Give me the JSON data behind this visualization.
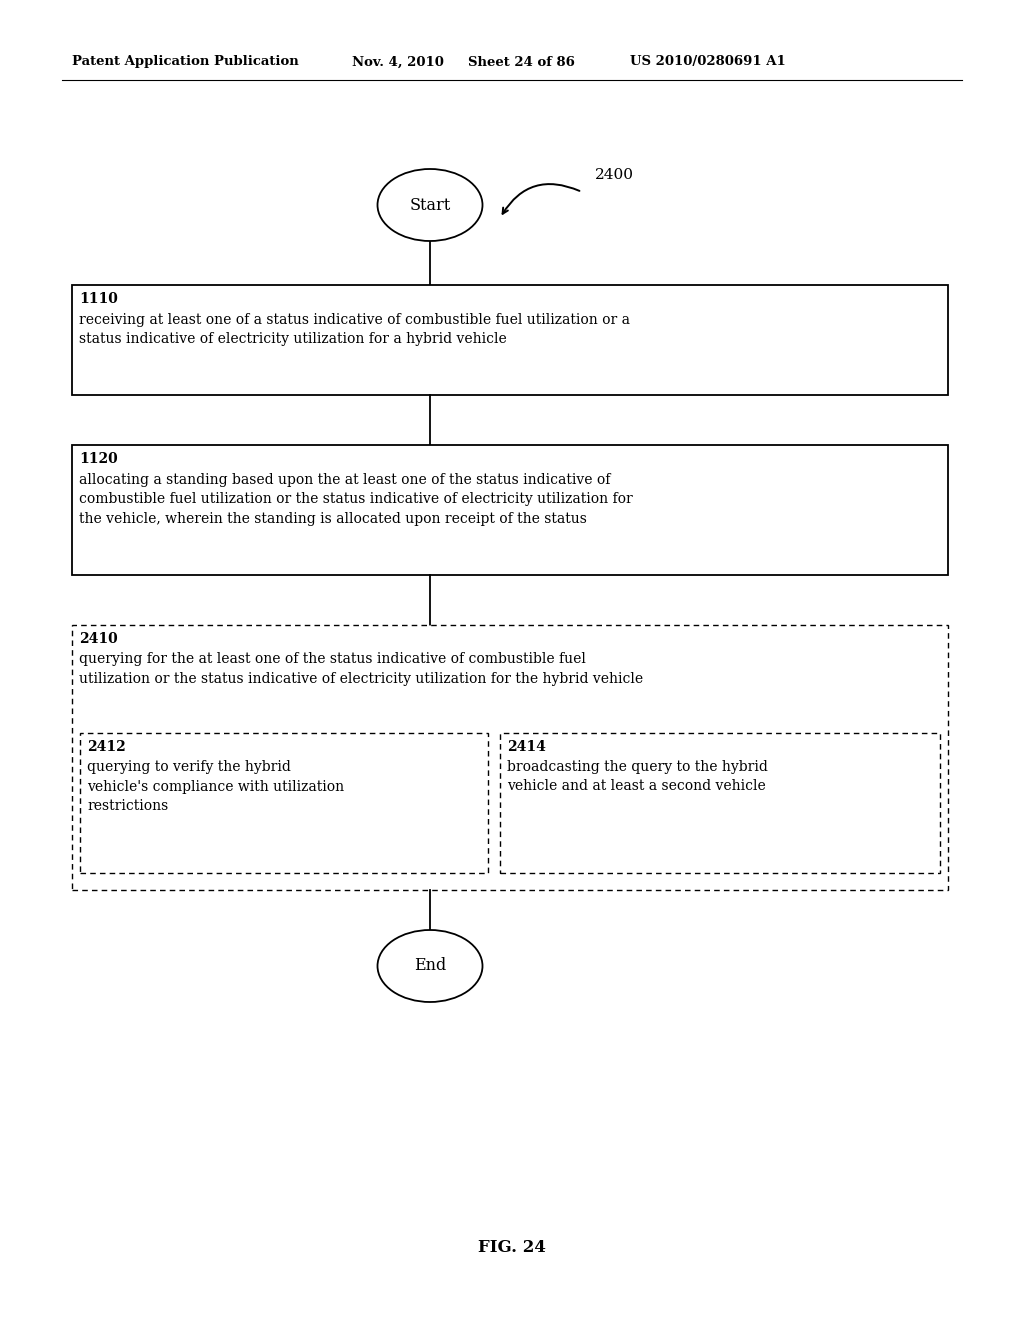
{
  "bg_color": "#ffffff",
  "header_text": "Patent Application Publication",
  "header_date": "Nov. 4, 2010",
  "header_sheet": "Sheet 24 of 86",
  "header_patent": "US 2010/0280691 A1",
  "fig_label": "FIG. 24",
  "diagram_ref": "2400",
  "start_label": "Start",
  "end_label": "End",
  "box1_id": "1110",
  "box1_text": "receiving at least one of a status indicative of combustible fuel utilization or a\nstatus indicative of electricity utilization for a hybrid vehicle",
  "box2_id": "1120",
  "box2_text": "allocating a standing based upon the at least one of the status indicative of\ncombustible fuel utilization or the status indicative of electricity utilization for\nthe vehicle, wherein the standing is allocated upon receipt of the status",
  "box3_id": "2410",
  "box3_text": "querying for the at least one of the status indicative of combustible fuel\nutilization or the status indicative of electricity utilization for the hybrid vehicle",
  "box3a_id": "2412",
  "box3a_text": "querying to verify the hybrid\nvehicle's compliance with utilization\nrestrictions",
  "box3b_id": "2414",
  "box3b_text": "broadcasting the query to the hybrid\nvehicle and at least a second vehicle"
}
